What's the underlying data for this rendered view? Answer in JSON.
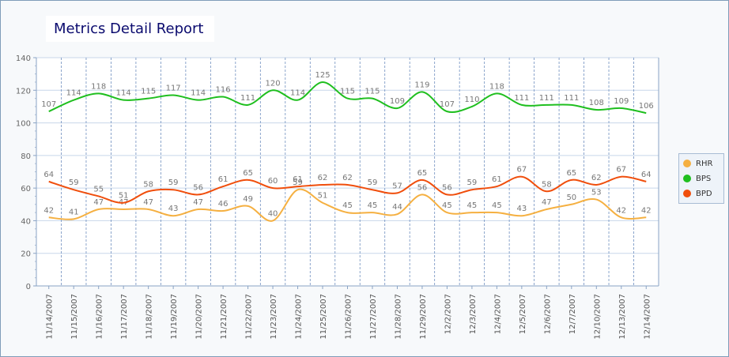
{
  "title": "Metrics Detail Report",
  "colors": {
    "RHR": "#f5b041",
    "BPS": "#1fbf1f",
    "BPD": "#f04e0c"
  },
  "chart_data": {
    "type": "line",
    "title": "Metrics Detail Report",
    "xlabel": "",
    "ylabel": "",
    "ylim": [
      0,
      140
    ],
    "yticks": [
      0,
      20,
      40,
      60,
      80,
      100,
      120,
      140
    ],
    "grid": true,
    "legend": "right",
    "categories": [
      "11/14/2007",
      "11/15/2007",
      "11/16/2007",
      "11/17/2007",
      "11/18/2007",
      "11/19/2007",
      "11/20/2007",
      "11/21/2007",
      "11/22/2007",
      "11/23/2007",
      "11/24/2007",
      "11/25/2007",
      "11/26/2007",
      "11/27/2007",
      "11/28/2007",
      "11/29/2007",
      "12/2/2007",
      "12/3/2007",
      "12/4/2007",
      "12/5/2007",
      "12/6/2007",
      "12/7/2007",
      "12/10/2007",
      "12/13/2007",
      "12/14/2007"
    ],
    "series": [
      {
        "name": "RHR",
        "values": [
          42,
          41,
          47,
          47,
          47,
          43,
          47,
          46,
          49,
          40,
          59,
          51,
          45,
          45,
          44,
          56,
          45,
          45,
          45,
          43,
          47,
          50,
          53,
          42,
          42
        ]
      },
      {
        "name": "BPS",
        "values": [
          107,
          114,
          118,
          114,
          115,
          117,
          114,
          116,
          111,
          120,
          114,
          125,
          115,
          115,
          109,
          119,
          107,
          110,
          118,
          111,
          111,
          111,
          108,
          109,
          106
        ]
      },
      {
        "name": "BPD",
        "values": [
          64,
          59,
          55,
          51,
          58,
          59,
          56,
          61,
          65,
          60,
          61,
          62,
          62,
          59,
          57,
          65,
          56,
          59,
          61,
          67,
          58,
          65,
          62,
          67,
          64
        ]
      }
    ]
  }
}
